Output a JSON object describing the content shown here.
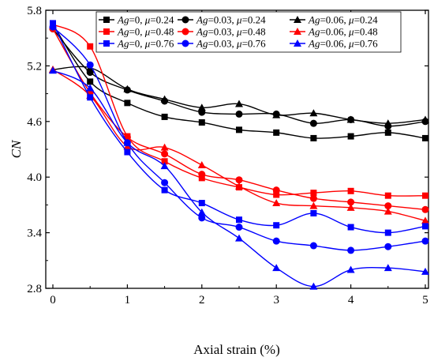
{
  "chart_data": {
    "type": "line",
    "xlabel": "Axial strain (%)",
    "ylabel": "CN",
    "xlim": [
      0,
      5
    ],
    "ylim": [
      2.8,
      5.8
    ],
    "xticks": [
      "0",
      "1",
      "2",
      "3",
      "4",
      "5"
    ],
    "yticks": [
      "2.8",
      "3.4",
      "4.0",
      "4.6",
      "5.2",
      "5.8"
    ],
    "grid": false,
    "legend_position": "top-right",
    "x": [
      0,
      0.5,
      1,
      1.5,
      2,
      2.5,
      3,
      3.5,
      4,
      4.5,
      5
    ],
    "series": [
      {
        "name": "Ag=0, μ=0.24",
        "label_parts": [
          "Ag",
          "=0, ",
          "μ",
          "=0.24"
        ],
        "color": "#000000",
        "marker": "square",
        "values": [
          5.65,
          5.03,
          4.8,
          4.65,
          4.59,
          4.51,
          4.48,
          4.42,
          4.44,
          4.48,
          4.42
        ]
      },
      {
        "name": "Ag=0.03, μ=0.24",
        "label_parts": [
          "Ag",
          "=0.03, ",
          "μ",
          "=0.24"
        ],
        "color": "#000000",
        "marker": "circle",
        "values": [
          5.6,
          5.13,
          4.94,
          4.82,
          4.7,
          4.68,
          4.68,
          4.58,
          4.62,
          4.55,
          4.6
        ]
      },
      {
        "name": "Ag=0.06, μ=0.24",
        "label_parts": [
          "Ag",
          "=0.06, ",
          "μ",
          "=0.24"
        ],
        "color": "#000000",
        "marker": "triangle",
        "values": [
          5.16,
          5.18,
          4.95,
          4.84,
          4.75,
          4.79,
          4.67,
          4.69,
          4.62,
          4.58,
          4.62
        ]
      },
      {
        "name": "Ag=0, μ=0.48",
        "label_parts": [
          "Ag",
          "=0, ",
          "μ",
          "=0.48"
        ],
        "color": "#ff0000",
        "marker": "square",
        "values": [
          5.65,
          5.41,
          4.44,
          4.17,
          3.99,
          3.89,
          3.81,
          3.83,
          3.85,
          3.8,
          3.8
        ]
      },
      {
        "name": "Ag=0.03, μ=0.48",
        "label_parts": [
          "Ag",
          "=0.03, ",
          "μ",
          "=0.48"
        ],
        "color": "#ff0000",
        "marker": "circle",
        "values": [
          5.6,
          4.91,
          4.43,
          4.25,
          4.03,
          3.97,
          3.86,
          3.77,
          3.73,
          3.69,
          3.65
        ]
      },
      {
        "name": "Ag=0.06, μ=0.48",
        "label_parts": [
          "Ag",
          "=0.06, ",
          "μ",
          "=0.48"
        ],
        "color": "#ff0000",
        "marker": "triangle",
        "values": [
          5.16,
          4.88,
          4.33,
          4.32,
          4.13,
          3.9,
          3.72,
          3.69,
          3.67,
          3.63,
          3.53
        ]
      },
      {
        "name": "Ag=0, μ=0.76",
        "label_parts": [
          "Ag",
          "=0, ",
          "μ",
          "=0.76"
        ],
        "color": "#0000ff",
        "marker": "square",
        "values": [
          5.66,
          4.86,
          4.27,
          3.86,
          3.72,
          3.54,
          3.48,
          3.61,
          3.46,
          3.4,
          3.47
        ]
      },
      {
        "name": "Ag=0.03, μ=0.76",
        "label_parts": [
          "Ag",
          "=0.03, ",
          "μ",
          "=0.76"
        ],
        "color": "#0000ff",
        "marker": "circle",
        "values": [
          5.62,
          5.21,
          4.37,
          3.94,
          3.56,
          3.46,
          3.31,
          3.26,
          3.21,
          3.25,
          3.31
        ]
      },
      {
        "name": "Ag=0.06, μ=0.76",
        "label_parts": [
          "Ag",
          "=0.06, ",
          "μ",
          "=0.76"
        ],
        "color": "#0000ff",
        "marker": "triangle",
        "values": [
          5.15,
          4.96,
          4.37,
          4.12,
          3.62,
          3.34,
          3.02,
          2.82,
          3.0,
          3.02,
          2.98
        ]
      }
    ]
  }
}
